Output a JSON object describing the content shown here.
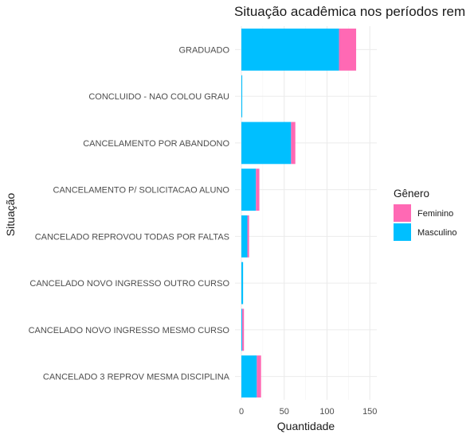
{
  "chart_data": {
    "type": "bar",
    "orientation": "horizontal",
    "stacked": true,
    "title": "Situação acadêmica nos períodos rem",
    "xlabel": "Quantidade",
    "ylabel": "Situação",
    "xlim": [
      0,
      160
    ],
    "xticks": [
      0,
      50,
      100,
      150
    ],
    "grid": true,
    "legend": {
      "title": "Gênero",
      "position": "right"
    },
    "categories": [
      "GRADUADO",
      "CONCLUIDO - NAO COLOU GRAU",
      "CANCELAMENTO POR ABANDONO",
      "CANCELAMENTO P/ SOLICITACAO ALUNO",
      "CANCELADO REPROVOU TODAS POR FALTAS",
      "CANCELADO NOVO INGRESSO OUTRO CURSO",
      "CANCELADO NOVO INGRESSO MESMO CURSO",
      "CANCELADO 3 REPROV MESMA DISCIPLINA"
    ],
    "series": [
      {
        "name": "Masculino",
        "color": "#00bfff",
        "values": [
          114,
          1,
          58,
          17,
          7,
          2,
          1,
          18
        ]
      },
      {
        "name": "Feminino",
        "color": "#ff69b4",
        "values": [
          20,
          0,
          5,
          4,
          2,
          0,
          2,
          5
        ]
      }
    ],
    "legend_order": [
      "Feminino",
      "Masculino"
    ]
  }
}
